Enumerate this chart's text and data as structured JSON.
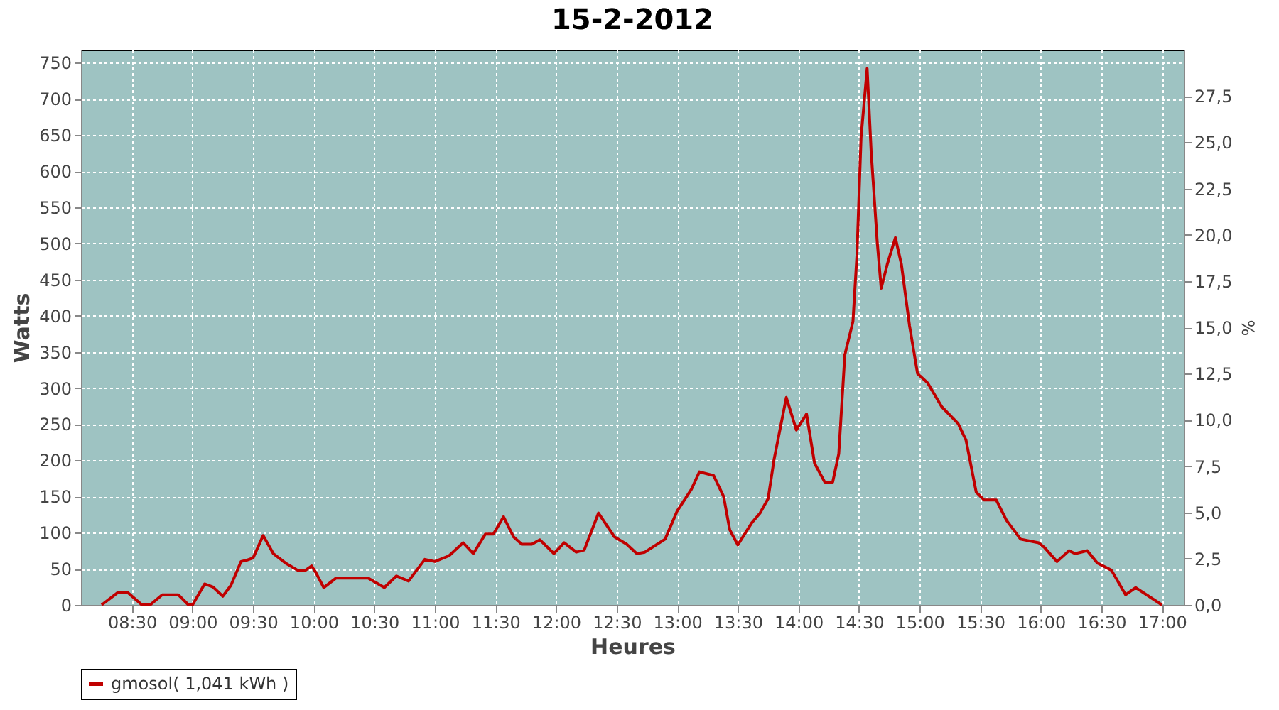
{
  "chart_data": {
    "type": "line",
    "title": "15-2-2012",
    "xlabel": "Heures",
    "ylabel": "Watts",
    "y2label": "%",
    "x": [
      8.25,
      8.383,
      8.467,
      8.583,
      8.65,
      8.75,
      8.883,
      8.967,
      9,
      9.1,
      9.167,
      9.25,
      9.317,
      9.4,
      9.45,
      9.5,
      9.583,
      9.667,
      9.767,
      9.867,
      9.933,
      9.983,
      10.017,
      10.083,
      10.183,
      10.3,
      10.45,
      10.583,
      10.683,
      10.783,
      10.917,
      11,
      11.117,
      11.233,
      11.317,
      11.417,
      11.483,
      11.567,
      11.65,
      11.717,
      11.8,
      11.867,
      11.983,
      12.067,
      12.167,
      12.233,
      12.35,
      12.483,
      12.583,
      12.667,
      12.733,
      12.9,
      13,
      13.117,
      13.183,
      13.3,
      13.383,
      13.433,
      13.5,
      13.617,
      13.683,
      13.75,
      13.8,
      13.9,
      13.983,
      14.067,
      14.133,
      14.217,
      14.283,
      14.333,
      14.383,
      14.45,
      14.483,
      14.517,
      14.567,
      14.6,
      14.65,
      14.683,
      14.733,
      14.8,
      14.85,
      14.917,
      14.983,
      15.067,
      15.183,
      15.317,
      15.383,
      15.467,
      15.533,
      15.633,
      15.717,
      15.833,
      15.983,
      16.033,
      16.133,
      16.233,
      16.283,
      16.383,
      16.467,
      16.583,
      16.7,
      16.783,
      17
    ],
    "series": [
      {
        "name": "gmosol( 1,041 kWh )",
        "color": "#c00000",
        "values": [
          0,
          17,
          17,
          0,
          0,
          14,
          14,
          0,
          0,
          29,
          25,
          12,
          27,
          60,
          62,
          65,
          96,
          71,
          58,
          48,
          48,
          54,
          45,
          24,
          37,
          37,
          37,
          24,
          40,
          33,
          63,
          60,
          68,
          86,
          71,
          98,
          98,
          122,
          94,
          84,
          84,
          90,
          71,
          86,
          73,
          76,
          127,
          94,
          84,
          71,
          73,
          91,
          130,
          160,
          184,
          179,
          150,
          104,
          83,
          114,
          127,
          147,
          202,
          287,
          242,
          264,
          196,
          170,
          170,
          209,
          346,
          392,
          484,
          647,
          742,
          628,
          503,
          438,
          471,
          508,
          471,
          386,
          320,
          307,
          274,
          251,
          228,
          156,
          145,
          145,
          117,
          91,
          86,
          79,
          60,
          75,
          71,
          75,
          58,
          48,
          14,
          24,
          0
        ]
      }
    ],
    "xlim": [
      8.08,
      17.18
    ],
    "xticks": [
      {
        "value": 8.5,
        "label": "08:30"
      },
      {
        "value": 9,
        "label": "09:00"
      },
      {
        "value": 9.5,
        "label": "09:30"
      },
      {
        "value": 10,
        "label": "10:00"
      },
      {
        "value": 10.5,
        "label": "10:30"
      },
      {
        "value": 11,
        "label": "11:00"
      },
      {
        "value": 11.5,
        "label": "11:30"
      },
      {
        "value": 12,
        "label": "12:00"
      },
      {
        "value": 12.5,
        "label": "12:30"
      },
      {
        "value": 13,
        "label": "13:00"
      },
      {
        "value": 13.5,
        "label": "13:30"
      },
      {
        "value": 14,
        "label": "14:00"
      },
      {
        "value": 14.5,
        "label": "14:30"
      },
      {
        "value": 15,
        "label": "15:00"
      },
      {
        "value": 15.5,
        "label": "15:30"
      },
      {
        "value": 16,
        "label": "16:00"
      },
      {
        "value": 16.5,
        "label": "16:30"
      },
      {
        "value": 17,
        "label": "17:00"
      }
    ],
    "ylim": [
      0,
      768
    ],
    "yticks": [
      0,
      50,
      100,
      150,
      200,
      250,
      300,
      350,
      400,
      450,
      500,
      550,
      600,
      650,
      700,
      750
    ],
    "y2lim": [
      0,
      30
    ],
    "y2ticks": [
      {
        "value": 0,
        "label": "0,0"
      },
      {
        "value": 2.5,
        "label": "2,5"
      },
      {
        "value": 5,
        "label": "5,0"
      },
      {
        "value": 7.5,
        "label": "7,5"
      },
      {
        "value": 10,
        "label": "10,0"
      },
      {
        "value": 12.5,
        "label": "12,5"
      },
      {
        "value": 15,
        "label": "15,0"
      },
      {
        "value": 17.5,
        "label": "17,5"
      },
      {
        "value": 20,
        "label": "20,0"
      },
      {
        "value": 22.5,
        "label": "22,5"
      },
      {
        "value": 25,
        "label": "25,0"
      },
      {
        "value": 27.5,
        "label": "27,5"
      }
    ],
    "grid": true,
    "legend": "bottom",
    "line_style": "solid"
  }
}
